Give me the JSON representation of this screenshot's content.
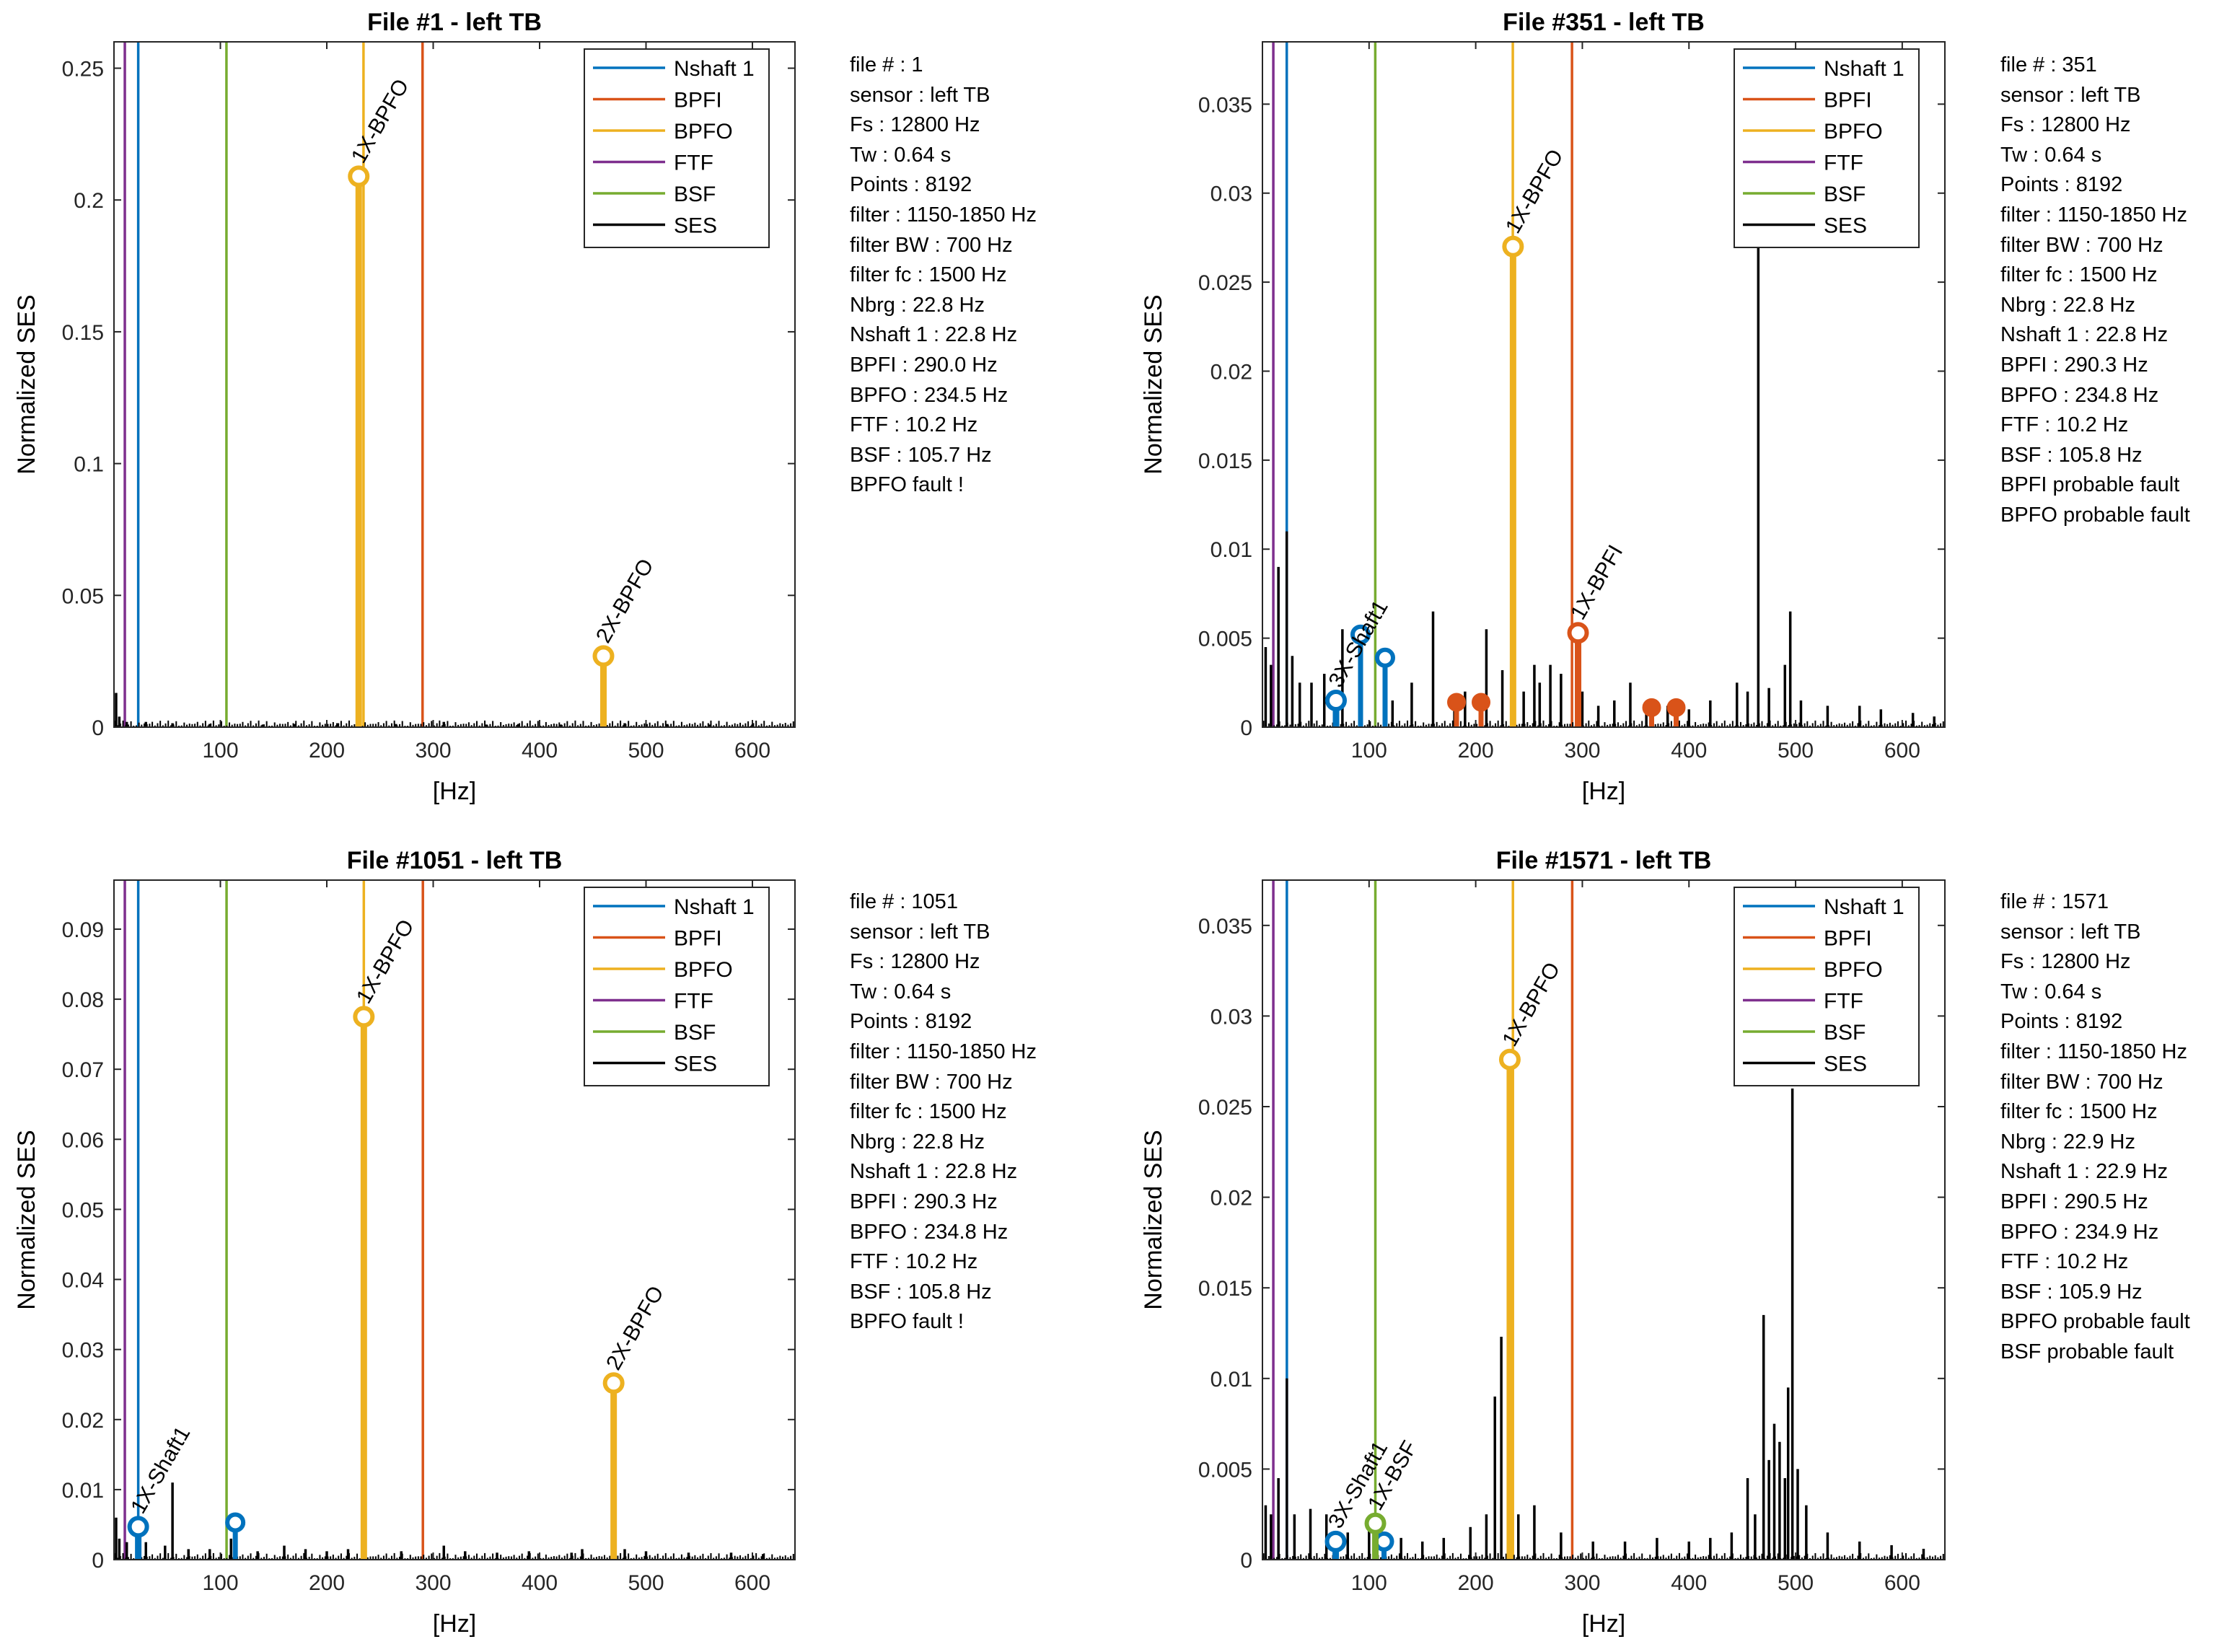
{
  "chart_data": [
    {
      "type": "line",
      "title": "File #1 - left TB",
      "xlabel": "[Hz]",
      "ylabel": "Normalized SES",
      "xlim": [
        0,
        640
      ],
      "ylim": [
        0,
        0.26
      ],
      "xticks": [
        100,
        200,
        300,
        400,
        500,
        600
      ],
      "yticks": [
        0,
        0.05,
        0.1,
        0.15,
        0.2,
        0.25
      ],
      "ytick_labels": [
        "0",
        "0.05",
        "0.1",
        "0.15",
        "0.2",
        "0.25"
      ],
      "legend": {
        "position": "top-right",
        "entries": [
          "Nshaft 1",
          "BPFI",
          "BPFO",
          "FTF",
          "BSF",
          "SES"
        ]
      },
      "colors": {
        "Nshaft 1": "#0072BD",
        "BPFI": "#D95319",
        "BPFO": "#EDB120",
        "FTF": "#7E2F8E",
        "BSF": "#77AC30",
        "SES": "#000000"
      },
      "reference_lines": [
        {
          "name": "Nshaft 1",
          "x": 22.8
        },
        {
          "name": "BPFI",
          "x": 290.0
        },
        {
          "name": "BPFO",
          "x": 234.5
        },
        {
          "name": "FTF",
          "x": 10.2
        },
        {
          "name": "BSF",
          "x": 105.7
        }
      ],
      "ses_spikes": [
        [
          2,
          0.013
        ],
        [
          5,
          0.004
        ],
        [
          12,
          0.002
        ],
        [
          30,
          0.002
        ],
        [
          55,
          0.0015
        ],
        [
          90,
          0.0012
        ],
        [
          140,
          0.001
        ],
        [
          170,
          0.0012
        ],
        [
          210,
          0.0015
        ],
        [
          265,
          0.0012
        ],
        [
          310,
          0.002
        ],
        [
          350,
          0.001
        ],
        [
          380,
          0.0012
        ],
        [
          420,
          0.001
        ],
        [
          480,
          0.0015
        ],
        [
          520,
          0.0012
        ],
        [
          560,
          0.001
        ],
        [
          600,
          0.001
        ]
      ],
      "markers": [
        {
          "label": "1X-BPFO",
          "x": 230,
          "y": 0.209,
          "color": "#EDB120",
          "style": "open"
        },
        {
          "label": "2X-BPFO",
          "x": 460,
          "y": 0.027,
          "color": "#EDB120",
          "style": "open"
        }
      ],
      "extra_markers": [],
      "info": [
        "file # : 1",
        "sensor : left TB",
        "Fs : 12800 Hz",
        "Tw : 0.64 s",
        "Points : 8192",
        "filter : 1150-1850 Hz",
        "filter BW : 700 Hz",
        "filter fc : 1500 Hz",
        "Nbrg : 22.8 Hz",
        "Nshaft 1 : 22.8 Hz",
        "BPFI : 290.0 Hz",
        "BPFO : 234.5 Hz",
        "FTF : 10.2 Hz",
        "BSF : 105.7 Hz",
        "BPFO fault !"
      ]
    },
    {
      "type": "line",
      "title": "File #351 - left TB",
      "xlabel": "[Hz]",
      "ylabel": "Normalized SES",
      "xlim": [
        0,
        640
      ],
      "ylim": [
        0,
        0.0385
      ],
      "xticks": [
        100,
        200,
        300,
        400,
        500,
        600
      ],
      "yticks": [
        0,
        0.005,
        0.01,
        0.015,
        0.02,
        0.025,
        0.03,
        0.035
      ],
      "ytick_labels": [
        "0",
        "0.005",
        "0.01",
        "0.015",
        "0.02",
        "0.025",
        "0.03",
        "0.035"
      ],
      "legend": {
        "position": "top-right",
        "entries": [
          "Nshaft 1",
          "BPFI",
          "BPFO",
          "FTF",
          "BSF",
          "SES"
        ]
      },
      "colors": {
        "Nshaft 1": "#0072BD",
        "BPFI": "#D95319",
        "BPFO": "#EDB120",
        "FTF": "#7E2F8E",
        "BSF": "#77AC30",
        "SES": "#000000"
      },
      "reference_lines": [
        {
          "name": "Nshaft 1",
          "x": 22.8
        },
        {
          "name": "BPFI",
          "x": 290.3
        },
        {
          "name": "BPFO",
          "x": 234.8
        },
        {
          "name": "FTF",
          "x": 10.2
        },
        {
          "name": "BSF",
          "x": 105.8
        }
      ],
      "ses_spikes": [
        [
          3,
          0.0045
        ],
        [
          8,
          0.0035
        ],
        [
          15,
          0.009
        ],
        [
          22.8,
          0.011
        ],
        [
          28,
          0.004
        ],
        [
          35,
          0.0025
        ],
        [
          46,
          0.0025
        ],
        [
          58,
          0.003
        ],
        [
          75,
          0.0055
        ],
        [
          92,
          0.0055
        ],
        [
          115,
          0.004
        ],
        [
          122,
          0.0015
        ],
        [
          140,
          0.0025
        ],
        [
          160,
          0.0065
        ],
        [
          180,
          0.0012
        ],
        [
          190,
          0.002
        ],
        [
          205,
          0.0014
        ],
        [
          210,
          0.0055
        ],
        [
          225,
          0.0032
        ],
        [
          235,
          0.007
        ],
        [
          245,
          0.002
        ],
        [
          255,
          0.0035
        ],
        [
          260,
          0.0025
        ],
        [
          270,
          0.0035
        ],
        [
          280,
          0.003
        ],
        [
          300,
          0.002
        ],
        [
          315,
          0.0012
        ],
        [
          330,
          0.0015
        ],
        [
          345,
          0.0025
        ],
        [
          360,
          0.0012
        ],
        [
          380,
          0.0012
        ],
        [
          400,
          0.001
        ],
        [
          420,
          0.0015
        ],
        [
          445,
          0.0025
        ],
        [
          455,
          0.002
        ],
        [
          465,
          0.028
        ],
        [
          475,
          0.0022
        ],
        [
          490,
          0.0035
        ],
        [
          495,
          0.0065
        ],
        [
          505,
          0.0015
        ],
        [
          530,
          0.0012
        ],
        [
          560,
          0.0012
        ],
        [
          580,
          0.001
        ],
        [
          610,
          0.0008
        ],
        [
          630,
          0.0006
        ]
      ],
      "markers": [
        {
          "label": "1X-BPFO",
          "x": 235,
          "y": 0.027,
          "color": "#EDB120",
          "style": "open"
        },
        {
          "label": "1X-BPFI",
          "x": 296,
          "y": 0.0053,
          "color": "#D95319",
          "style": "open"
        },
        {
          "label": "3X-Shaft1",
          "x": 69,
          "y": 0.0015,
          "color": "#0072BD",
          "style": "open"
        }
      ],
      "extra_markers": [
        {
          "x": 92,
          "y": 0.0052,
          "color": "#0072BD",
          "style": "open"
        },
        {
          "x": 115,
          "y": 0.0039,
          "color": "#0072BD",
          "style": "open"
        },
        {
          "x": 182,
          "y": 0.0014,
          "color": "#D95319",
          "style": "filled"
        },
        {
          "x": 205,
          "y": 0.0014,
          "color": "#D95319",
          "style": "filled"
        },
        {
          "x": 365,
          "y": 0.0011,
          "color": "#D95319",
          "style": "filled"
        },
        {
          "x": 388,
          "y": 0.0011,
          "color": "#D95319",
          "style": "filled"
        }
      ],
      "info": [
        "file # : 351",
        "sensor : left TB",
        "Fs : 12800 Hz",
        "Tw : 0.64 s",
        "Points : 8192",
        "filter : 1150-1850 Hz",
        "filter BW : 700 Hz",
        "filter fc : 1500 Hz",
        "Nbrg : 22.8 Hz",
        "Nshaft 1 : 22.8 Hz",
        "BPFI : 290.3 Hz",
        "BPFO : 234.8 Hz",
        "FTF : 10.2 Hz",
        "BSF : 105.8 Hz",
        "BPFI probable fault",
        "BPFO probable fault"
      ]
    },
    {
      "type": "line",
      "title": "File #1051 - left TB",
      "xlabel": "[Hz]",
      "ylabel": "Normalized SES",
      "xlim": [
        0,
        640
      ],
      "ylim": [
        0,
        0.097
      ],
      "xticks": [
        100,
        200,
        300,
        400,
        500,
        600
      ],
      "yticks": [
        0,
        0.01,
        0.02,
        0.03,
        0.04,
        0.05,
        0.06,
        0.07,
        0.08,
        0.09
      ],
      "ytick_labels": [
        "0",
        "0.01",
        "0.02",
        "0.03",
        "0.04",
        "0.05",
        "0.06",
        "0.07",
        "0.08",
        "0.09"
      ],
      "legend": {
        "position": "top-right",
        "entries": [
          "Nshaft 1",
          "BPFI",
          "BPFO",
          "FTF",
          "BSF",
          "SES"
        ]
      },
      "colors": {
        "Nshaft 1": "#0072BD",
        "BPFI": "#D95319",
        "BPFO": "#EDB120",
        "FTF": "#7E2F8E",
        "BSF": "#77AC30",
        "SES": "#000000"
      },
      "reference_lines": [
        {
          "name": "Nshaft 1",
          "x": 22.8
        },
        {
          "name": "BPFI",
          "x": 290.3
        },
        {
          "name": "BPFO",
          "x": 234.8
        },
        {
          "name": "FTF",
          "x": 10.2
        },
        {
          "name": "BSF",
          "x": 105.8
        }
      ],
      "ses_spikes": [
        [
          2,
          0.006
        ],
        [
          5,
          0.003
        ],
        [
          12,
          0.0025
        ],
        [
          30,
          0.0025
        ],
        [
          48,
          0.002
        ],
        [
          55,
          0.011
        ],
        [
          70,
          0.0015
        ],
        [
          90,
          0.0015
        ],
        [
          110,
          0.003
        ],
        [
          135,
          0.0012
        ],
        [
          160,
          0.002
        ],
        [
          180,
          0.0015
        ],
        [
          200,
          0.0012
        ],
        [
          220,
          0.0015
        ],
        [
          270,
          0.0012
        ],
        [
          310,
          0.002
        ],
        [
          330,
          0.0012
        ],
        [
          360,
          0.001
        ],
        [
          390,
          0.0012
        ],
        [
          430,
          0.001
        ],
        [
          440,
          0.0015
        ],
        [
          480,
          0.0015
        ],
        [
          500,
          0.0012
        ],
        [
          540,
          0.001
        ],
        [
          580,
          0.001
        ],
        [
          610,
          0.0008
        ]
      ],
      "markers": [
        {
          "label": "1X-BPFO",
          "x": 234.8,
          "y": 0.0775,
          "color": "#EDB120",
          "style": "open"
        },
        {
          "label": "2X-BPFO",
          "x": 469.6,
          "y": 0.0252,
          "color": "#EDB120",
          "style": "open"
        },
        {
          "label": "1X-Shaft1",
          "x": 22.8,
          "y": 0.0047,
          "color": "#0072BD",
          "style": "open"
        }
      ],
      "extra_markers": [
        {
          "x": 114,
          "y": 0.0053,
          "color": "#0072BD",
          "style": "open"
        }
      ],
      "info": [
        "file # : 1051",
        "sensor : left TB",
        "Fs : 12800 Hz",
        "Tw : 0.64 s",
        "Points : 8192",
        "filter : 1150-1850 Hz",
        "filter BW : 700 Hz",
        "filter fc : 1500 Hz",
        "Nbrg : 22.8 Hz",
        "Nshaft 1 : 22.8 Hz",
        "BPFI : 290.3 Hz",
        "BPFO : 234.8 Hz",
        "FTF : 10.2 Hz",
        "BSF : 105.8 Hz",
        "BPFO fault !"
      ]
    },
    {
      "type": "line",
      "title": "File #1571 - left TB",
      "xlabel": "[Hz]",
      "ylabel": "Normalized SES",
      "xlim": [
        0,
        640
      ],
      "ylim": [
        0,
        0.0375
      ],
      "xticks": [
        100,
        200,
        300,
        400,
        500,
        600
      ],
      "yticks": [
        0,
        0.005,
        0.01,
        0.015,
        0.02,
        0.025,
        0.03,
        0.035
      ],
      "ytick_labels": [
        "0",
        "0.005",
        "0.01",
        "0.015",
        "0.02",
        "0.025",
        "0.03",
        "0.035"
      ],
      "legend": {
        "position": "top-right",
        "entries": [
          "Nshaft 1",
          "BPFI",
          "BPFO",
          "FTF",
          "BSF",
          "SES"
        ]
      },
      "colors": {
        "Nshaft 1": "#0072BD",
        "BPFI": "#D95319",
        "BPFO": "#EDB120",
        "FTF": "#7E2F8E",
        "BSF": "#77AC30",
        "SES": "#000000"
      },
      "reference_lines": [
        {
          "name": "Nshaft 1",
          "x": 22.9
        },
        {
          "name": "BPFI",
          "x": 290.5
        },
        {
          "name": "BPFO",
          "x": 234.9
        },
        {
          "name": "FTF",
          "x": 10.2
        },
        {
          "name": "BSF",
          "x": 105.9
        }
      ],
      "ses_spikes": [
        [
          3,
          0.003
        ],
        [
          8,
          0.0025
        ],
        [
          15,
          0.0045
        ],
        [
          22.9,
          0.01
        ],
        [
          30,
          0.0025
        ],
        [
          45,
          0.0028
        ],
        [
          60,
          0.0025
        ],
        [
          80,
          0.0015
        ],
        [
          100,
          0.002
        ],
        [
          130,
          0.0012
        ],
        [
          150,
          0.001
        ],
        [
          170,
          0.0012
        ],
        [
          195,
          0.0018
        ],
        [
          210,
          0.0025
        ],
        [
          218,
          0.009
        ],
        [
          224,
          0.0123
        ],
        [
          240,
          0.0025
        ],
        [
          255,
          0.003
        ],
        [
          280,
          0.0015
        ],
        [
          310,
          0.001
        ],
        [
          340,
          0.001
        ],
        [
          370,
          0.0012
        ],
        [
          400,
          0.001
        ],
        [
          420,
          0.0012
        ],
        [
          440,
          0.0015
        ],
        [
          455,
          0.0045
        ],
        [
          462,
          0.0025
        ],
        [
          470,
          0.0135
        ],
        [
          475,
          0.0055
        ],
        [
          480,
          0.0075
        ],
        [
          485,
          0.0065
        ],
        [
          490,
          0.0045
        ],
        [
          493,
          0.0095
        ],
        [
          497,
          0.026
        ],
        [
          502,
          0.005
        ],
        [
          510,
          0.003
        ],
        [
          530,
          0.0015
        ],
        [
          560,
          0.001
        ],
        [
          590,
          0.0008
        ],
        [
          620,
          0.0006
        ]
      ],
      "markers": [
        {
          "label": "1X-BPFO",
          "x": 232,
          "y": 0.0276,
          "color": "#EDB120",
          "style": "open"
        },
        {
          "label": "3X-Shaft1",
          "x": 68.7,
          "y": 0.001,
          "color": "#0072BD",
          "style": "open"
        },
        {
          "label": "1X-BSF",
          "x": 105.9,
          "y": 0.002,
          "color": "#77AC30",
          "style": "open"
        }
      ],
      "extra_markers": [
        {
          "x": 114,
          "y": 0.001,
          "color": "#0072BD",
          "style": "open"
        }
      ],
      "info": [
        "file # : 1571",
        "sensor : left TB",
        "Fs : 12800 Hz",
        "Tw : 0.64 s",
        "Points : 8192",
        "filter : 1150-1850 Hz",
        "filter BW : 700 Hz",
        "filter fc : 1500 Hz",
        "Nbrg : 22.9 Hz",
        "Nshaft 1 : 22.9 Hz",
        "BPFI : 290.5 Hz",
        "BPFO : 234.9 Hz",
        "FTF : 10.2 Hz",
        "BSF : 105.9 Hz",
        "BPFO probable fault",
        "BSF probable fault"
      ]
    }
  ]
}
